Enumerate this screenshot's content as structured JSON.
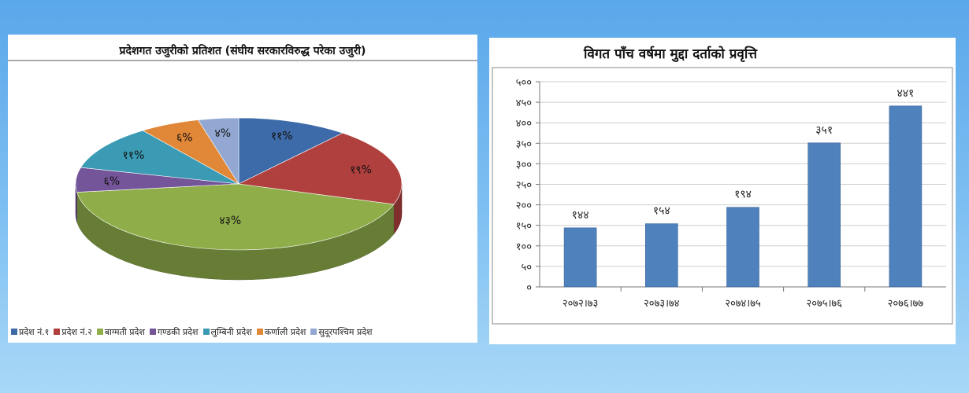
{
  "chart_data": [
    {
      "type": "pie",
      "title": "प्रदेशगत उजुरीको प्रतिशत (संघीय सरकारविरुद्ध परेका उजुरी)",
      "legend_position": "bottom",
      "slices": [
        {
          "name": "प्रदेश नं.१",
          "value": 11,
          "label": "११%",
          "color": "#3d6aa8"
        },
        {
          "name": "प्रदेश नं.२",
          "value": 19,
          "label": "१९%",
          "color": "#b0403e"
        },
        {
          "name": "बाग्मती प्रदेश",
          "value": 43,
          "label": "४३%",
          "color": "#8fae4a"
        },
        {
          "name": "गण्डकी प्रदेश",
          "value": 6,
          "label": "६%",
          "color": "#74559a"
        },
        {
          "name": "लुम्बिनी प्रदेश",
          "value": 11,
          "label": "११%",
          "color": "#3b9bb5"
        },
        {
          "name": "कर्णाली प्रदेश",
          "value": 6,
          "label": "६%",
          "color": "#e08838"
        },
        {
          "name": "सुदूरपश्चिम प्रदेश",
          "value": 4,
          "label": "४%",
          "color": "#92a8d2"
        }
      ]
    },
    {
      "type": "bar",
      "title": "विगत पाँच वर्षमा मुद्दा दर्ताको प्रवृत्ति",
      "categories": [
        "२०७२।७३",
        "२०७३।७४",
        "२०७४।७५",
        "२०७५।७६",
        "२०७६।७७"
      ],
      "values": [
        144,
        154,
        194,
        351,
        441
      ],
      "value_labels": [
        "१४४",
        "१५४",
        "१९४",
        "३५१",
        "४४१"
      ],
      "ylim": [
        0,
        500
      ],
      "yticks": [
        0,
        50,
        100,
        150,
        200,
        250,
        300,
        350,
        400,
        450,
        500
      ],
      "ytick_labels": [
        "०",
        "५०",
        "१००",
        "१५०",
        "२००",
        "२५०",
        "३००",
        "३५०",
        "४००",
        "४५०",
        "५००"
      ],
      "grid": true,
      "bar_color": "#4f81bd"
    }
  ]
}
